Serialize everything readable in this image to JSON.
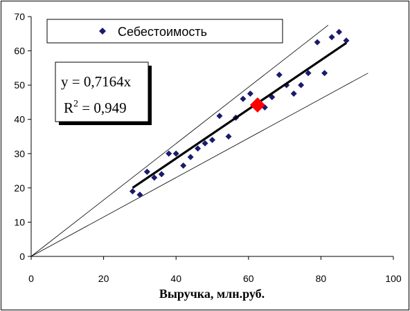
{
  "chart_data": {
    "type": "scatter",
    "xlabel": "Выручка, млн.руб.",
    "ylabel": "",
    "xlim": [
      0,
      100
    ],
    "ylim": [
      0,
      70
    ],
    "x_ticks": [
      "0",
      "20",
      "40",
      "60",
      "80",
      "100"
    ],
    "y_ticks": [
      "0",
      "10",
      "20",
      "30",
      "40",
      "50",
      "60",
      "70"
    ],
    "grid": false,
    "legend": {
      "position": "top-left",
      "entries": [
        "Себестоимость"
      ]
    },
    "series": [
      {
        "name": "Себестоимость",
        "color": "#1a1a6e",
        "marker": "diamond",
        "points": [
          {
            "x": 28,
            "y": 19
          },
          {
            "x": 30,
            "y": 18
          },
          {
            "x": 32,
            "y": 24.7
          },
          {
            "x": 34,
            "y": 23
          },
          {
            "x": 36,
            "y": 24
          },
          {
            "x": 38,
            "y": 30
          },
          {
            "x": 40,
            "y": 30
          },
          {
            "x": 42,
            "y": 26.5
          },
          {
            "x": 44,
            "y": 29
          },
          {
            "x": 46,
            "y": 31.5
          },
          {
            "x": 48,
            "y": 33
          },
          {
            "x": 50,
            "y": 34
          },
          {
            "x": 52,
            "y": 41
          },
          {
            "x": 54.5,
            "y": 35
          },
          {
            "x": 56.5,
            "y": 40.5
          },
          {
            "x": 58.5,
            "y": 46
          },
          {
            "x": 60.5,
            "y": 47.5
          },
          {
            "x": 62.5,
            "y": 44.5
          },
          {
            "x": 64.5,
            "y": 43.5
          },
          {
            "x": 66.5,
            "y": 46.5
          },
          {
            "x": 68.5,
            "y": 53
          },
          {
            "x": 70.5,
            "y": 50
          },
          {
            "x": 72.5,
            "y": 47.5
          },
          {
            "x": 74.5,
            "y": 50
          },
          {
            "x": 76.5,
            "y": 53.5
          },
          {
            "x": 79,
            "y": 62.5
          },
          {
            "x": 81,
            "y": 53.5
          },
          {
            "x": 83,
            "y": 64
          },
          {
            "x": 85,
            "y": 65.5
          },
          {
            "x": 87,
            "y": 63
          }
        ]
      }
    ],
    "highlight_point": {
      "x": 62.5,
      "y": 44.2,
      "color": "#ff0000",
      "marker": "diamond"
    },
    "trendline": {
      "x": [
        28,
        87
      ],
      "y": [
        20,
        62.3
      ],
      "color": "#000000"
    },
    "bound_lines": [
      {
        "x": [
          0,
          82
        ],
        "y": [
          0,
          67.5
        ],
        "color": "#000000"
      },
      {
        "x": [
          0,
          93
        ],
        "y": [
          0,
          53.5
        ],
        "color": "#000000"
      }
    ],
    "annotation": {
      "equation": "y = 0,7164x",
      "r2_prefix": "R",
      "r2_exponent": "2",
      "r2_value": " = 0,949"
    }
  }
}
